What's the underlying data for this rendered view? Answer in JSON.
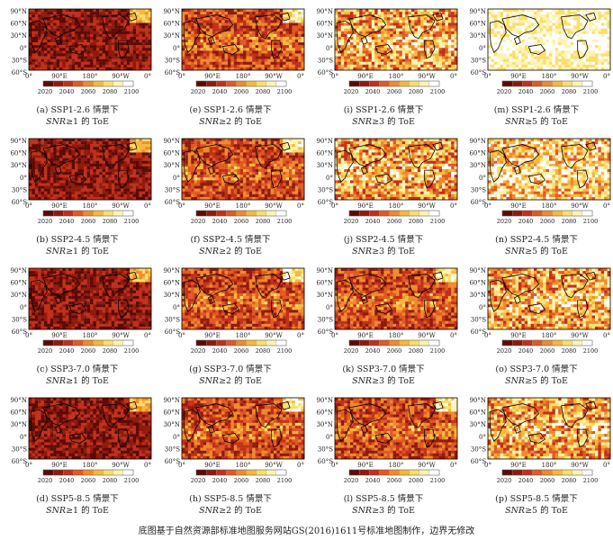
{
  "figure": {
    "colorbar": {
      "ticks": [
        "2020",
        "2040",
        "2060",
        "2080",
        "2100"
      ],
      "colors": [
        "#5c0a06",
        "#8f1a0c",
        "#c0301a",
        "#df5a22",
        "#ef8a2c",
        "#f6b83c",
        "#fbde6a",
        "#fdf3b2",
        "#ffffff"
      ]
    },
    "lat_ticks": [
      "90°N",
      "60°N",
      "30°N",
      "0°",
      "30°S",
      "60°S"
    ],
    "lon_ticks": [
      "0°",
      "90°E",
      "180°",
      "90°W",
      "0°"
    ],
    "panels": [
      {
        "letter": "(a)",
        "scenario": "SSP1-2.6",
        "suffix": "情景下",
        "snr_text": "SNR",
        "threshold": "≥1 的 ToE",
        "pattern": "dark"
      },
      {
        "letter": "(e)",
        "scenario": "SSP1-2.6",
        "suffix": "情景下",
        "snr_text": "SNR",
        "threshold": "≥2 的 ToE",
        "pattern": "mid"
      },
      {
        "letter": "(i)",
        "scenario": "SSP1-2.6",
        "suffix": "情景下",
        "snr_text": "SNR",
        "threshold": "≥3 的 ToE",
        "pattern": "light"
      },
      {
        "letter": "(m)",
        "scenario": "SSP1-2.6",
        "suffix": "情景下",
        "snr_text": "SNR",
        "threshold": "≥5 的 ToE",
        "pattern": "white"
      },
      {
        "letter": "(b)",
        "scenario": "SSP2-4.5",
        "suffix": "情景下",
        "snr_text": "SNR",
        "threshold": "≥1 的 ToE",
        "pattern": "dark"
      },
      {
        "letter": "(f)",
        "scenario": "SSP2-4.5",
        "suffix": "情景下",
        "snr_text": "SNR",
        "threshold": "≥2 的 ToE",
        "pattern": "mid"
      },
      {
        "letter": "(j)",
        "scenario": "SSP2-4.5",
        "suffix": "情景下",
        "snr_text": "SNR",
        "threshold": "≥3 的 ToE",
        "pattern": "light"
      },
      {
        "letter": "(n)",
        "scenario": "SSP2-4.5",
        "suffix": "情景下",
        "snr_text": "SNR",
        "threshold": "≥5 的 ToE",
        "pattern": "vlight"
      },
      {
        "letter": "(c)",
        "scenario": "SSP3-7.0",
        "suffix": "情景下",
        "snr_text": "SNR",
        "threshold": "≥1 的 ToE",
        "pattern": "dark"
      },
      {
        "letter": "(g)",
        "scenario": "SSP3-7.0",
        "suffix": "情景下",
        "snr_text": "SNR",
        "threshold": "≥2 的 ToE",
        "pattern": "mid"
      },
      {
        "letter": "(k)",
        "scenario": "SSP3-7.0",
        "suffix": "情景下",
        "snr_text": "SNR",
        "threshold": "≥3 的 ToE",
        "pattern": "mid"
      },
      {
        "letter": "(o)",
        "scenario": "SSP3-7.0",
        "suffix": "情景下",
        "snr_text": "SNR",
        "threshold": "≥5 的 ToE",
        "pattern": "light"
      },
      {
        "letter": "(d)",
        "scenario": "SSP5-8.5",
        "suffix": "情景下",
        "snr_text": "SNR",
        "threshold": "≥1 的 ToE",
        "pattern": "dark"
      },
      {
        "letter": "(h)",
        "scenario": "SSP5-8.5",
        "suffix": "情景下",
        "snr_text": "SNR",
        "threshold": "≥2 的 ToE",
        "pattern": "mid"
      },
      {
        "letter": "(l)",
        "scenario": "SSP5-8.5",
        "suffix": "情景下",
        "snr_text": "SNR",
        "threshold": "≥3 的 ToE",
        "pattern": "mid"
      },
      {
        "letter": "(p)",
        "scenario": "SSP5-8.5",
        "suffix": "情景下",
        "snr_text": "SNR",
        "threshold": "≥5 的 ToE",
        "pattern": "light"
      }
    ],
    "footer": "底图基于自然资源部标准地图服务网站GS(2016)1611号标准地图制作，边界无修改"
  }
}
